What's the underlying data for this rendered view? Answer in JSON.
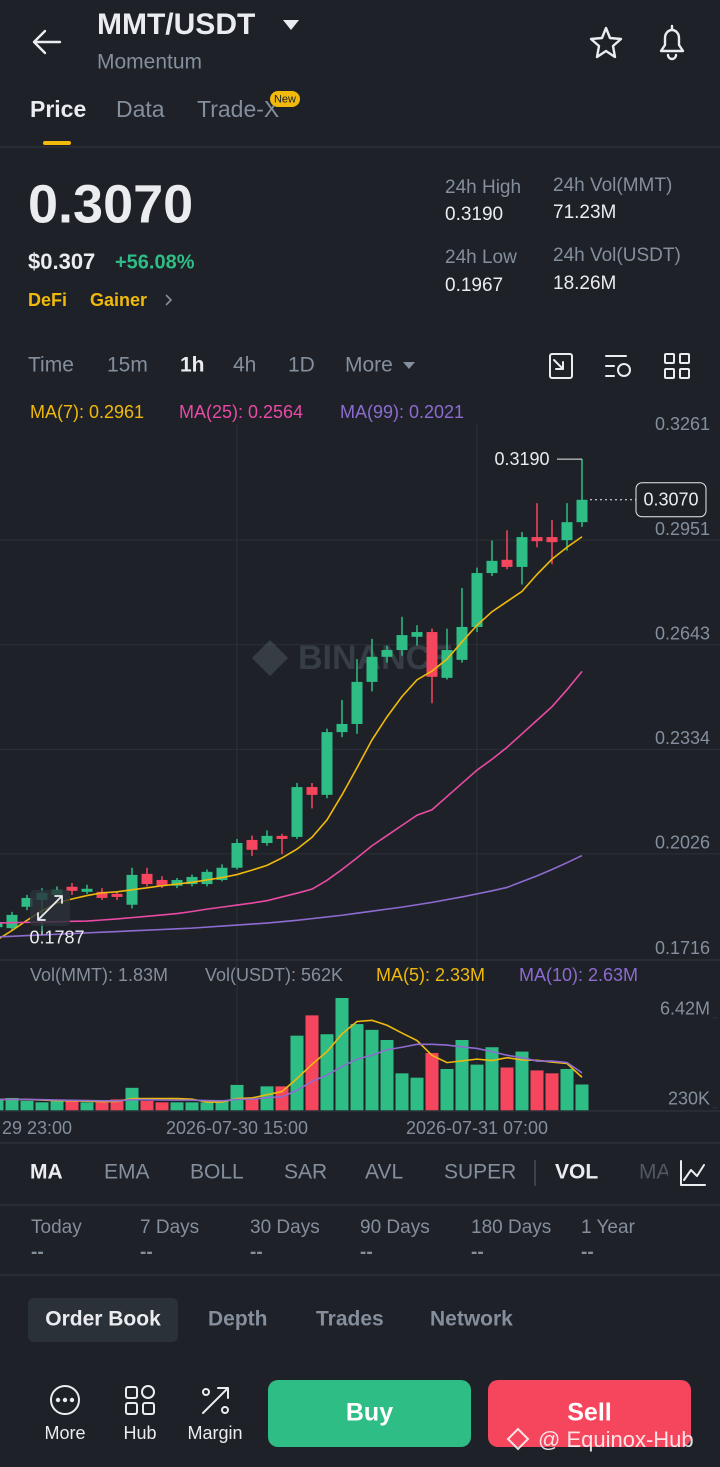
{
  "header": {
    "title": "MMT/USDT",
    "subtitle": "Momentum"
  },
  "tabs": [
    "Price",
    "Data",
    "Trade-X"
  ],
  "new_badge": "New",
  "ticker": {
    "price": "0.3070",
    "usd": "$0.307",
    "change": "+56.08%",
    "tags": [
      "DeFi",
      "Gainer"
    ],
    "stats": [
      {
        "label": "24h High",
        "value": "0.3190"
      },
      {
        "label": "24h Vol(MMT)",
        "value": "71.23M"
      },
      {
        "label": "24h Low",
        "value": "0.1967"
      },
      {
        "label": "24h Vol(USDT)",
        "value": "18.26M"
      }
    ]
  },
  "intervals": [
    "Time",
    "15m",
    "1h",
    "4h",
    "1D",
    "More"
  ],
  "chart_data": [
    {
      "type": "candlestick",
      "categories": [
        "29 23:00",
        null,
        null,
        null,
        null,
        null,
        null,
        null,
        null,
        null,
        null,
        null,
        null,
        null,
        null,
        null,
        "2026-07-30 15:00",
        null,
        null,
        null,
        null,
        null,
        null,
        null,
        null,
        null,
        null,
        null,
        null,
        null,
        null,
        null,
        "2026-07-31 07:00",
        null,
        null,
        null,
        null,
        null,
        null,
        null
      ],
      "open": [
        0.181,
        0.1807,
        0.187,
        0.189,
        0.1905,
        0.1929,
        0.1914,
        0.1914,
        0.1908,
        0.1876,
        0.1967,
        0.1949,
        0.1932,
        0.1937,
        0.1937,
        0.1949,
        0.1985,
        0.2067,
        0.2058,
        0.2079,
        0.2076,
        0.2223,
        0.22,
        0.2385,
        0.2409,
        0.2533,
        0.2607,
        0.2627,
        0.2666,
        0.268,
        0.2545,
        0.2598,
        0.2695,
        0.2854,
        0.2893,
        0.2872,
        0.296,
        0.296,
        0.2951,
        0.3004
      ],
      "high": [
        0.1835,
        0.1855,
        0.1905,
        0.1925,
        0.193,
        0.194,
        0.1935,
        0.1925,
        0.1915,
        0.1985,
        0.1985,
        0.196,
        0.1955,
        0.1965,
        0.198,
        0.1995,
        0.207,
        0.208,
        0.2095,
        0.2085,
        0.2235,
        0.2235,
        0.2395,
        0.248,
        0.26,
        0.266,
        0.264,
        0.2725,
        0.27,
        0.269,
        0.269,
        0.281,
        0.287,
        0.295,
        0.298,
        0.2975,
        0.306,
        0.301,
        0.306,
        0.319
      ],
      "low": [
        0.18,
        0.18,
        0.186,
        0.1787,
        0.1895,
        0.1905,
        0.1908,
        0.189,
        0.189,
        0.1865,
        0.193,
        0.1925,
        0.1925,
        0.193,
        0.193,
        0.1945,
        0.198,
        0.202,
        0.205,
        0.2025,
        0.207,
        0.216,
        0.219,
        0.237,
        0.238,
        0.2505,
        0.259,
        0.261,
        0.264,
        0.247,
        0.254,
        0.259,
        0.268,
        0.2845,
        0.2865,
        0.282,
        0.293,
        0.288,
        0.292,
        0.299
      ],
      "close": [
        0.1825,
        0.1846,
        0.1896,
        0.1911,
        0.192,
        0.1917,
        0.1923,
        0.1896,
        0.1899,
        0.1964,
        0.1937,
        0.1932,
        0.1949,
        0.1958,
        0.1973,
        0.1985,
        0.2058,
        0.2038,
        0.2079,
        0.207,
        0.2223,
        0.22,
        0.2385,
        0.2409,
        0.2533,
        0.2607,
        0.2627,
        0.2671,
        0.268,
        0.2548,
        0.2627,
        0.2695,
        0.2854,
        0.289,
        0.2872,
        0.296,
        0.2948,
        0.2945,
        0.3004,
        0.307
      ],
      "up_color": "#2ebd85",
      "down_color": "#f6465d",
      "ylim": [
        0.1716,
        0.3261
      ],
      "yticks": [
        0.3261,
        0.2951,
        0.2643,
        0.2334,
        0.2026,
        0.1716
      ],
      "grid": true,
      "series": [
        {
          "name": "MA(7): 0.2961",
          "color": "#f0b90b",
          "values": [
            0.1772,
            0.18,
            0.183,
            0.1858,
            0.1881,
            0.1893,
            0.1903,
            0.1911,
            0.1914,
            0.192,
            0.1926,
            0.1932,
            0.1937,
            0.1942,
            0.1949,
            0.1956,
            0.1965,
            0.1978,
            0.1992,
            0.2014,
            0.204,
            0.2075,
            0.2126,
            0.22,
            0.228,
            0.2362,
            0.243,
            0.249,
            0.2539,
            0.2565,
            0.26,
            0.2651,
            0.27,
            0.274,
            0.277,
            0.28,
            0.285,
            0.2895,
            0.293,
            0.2961
          ]
        },
        {
          "name": "MA(25): 0.2564",
          "color": "#e94aa5",
          "values": [
            0.1822,
            0.1823,
            0.1824,
            0.1825,
            0.1826,
            0.1827,
            0.1828,
            0.1831,
            0.1834,
            0.1838,
            0.1842,
            0.1846,
            0.185,
            0.1856,
            0.1863,
            0.1869,
            0.1875,
            0.1881,
            0.1888,
            0.1899,
            0.191,
            0.1922,
            0.1948,
            0.198,
            0.2014,
            0.205,
            0.208,
            0.211,
            0.214,
            0.2156,
            0.2195,
            0.2234,
            0.2273,
            0.2305,
            0.234,
            0.238,
            0.242,
            0.246,
            0.251,
            0.2564
          ]
        },
        {
          "name": "MA(99): 0.2021",
          "color": "#8e6bd1",
          "values": [
            0.1781,
            0.1783,
            0.1785,
            0.1787,
            0.1789,
            0.1791,
            0.1793,
            0.1795,
            0.1797,
            0.1799,
            0.1801,
            0.1803,
            0.1805,
            0.1807,
            0.181,
            0.1813,
            0.1816,
            0.1819,
            0.1822,
            0.1826,
            0.183,
            0.1835,
            0.184,
            0.1845,
            0.1851,
            0.1857,
            0.1863,
            0.1869,
            0.1876,
            0.1883,
            0.1891,
            0.1899,
            0.1908,
            0.1917,
            0.1927,
            0.1944,
            0.1961,
            0.198,
            0.2,
            0.2021
          ]
        }
      ],
      "annotations": {
        "last": {
          "value": 0.307,
          "label": "0.3070"
        },
        "high": {
          "value": 0.319,
          "label": "0.3190"
        },
        "low": {
          "value": 0.1787,
          "label": "0.1787"
        }
      }
    },
    {
      "type": "bar",
      "info": "Vol(USDT): 562K",
      "ylim": [
        0,
        7800000
      ],
      "yticks": [
        {
          "value": 6420000,
          "label": "6.42M"
        },
        {
          "value": 230000,
          "label": "230K"
        }
      ],
      "series": [
        {
          "name": "Vol(MMT): 1.83M",
          "values": [
            800000,
            900000,
            700000,
            600000,
            700000,
            700000,
            600000,
            600000,
            800000,
            1600000,
            700000,
            600000,
            600000,
            600000,
            600000,
            700000,
            1800000,
            800000,
            1700000,
            1700000,
            5200000,
            6600000,
            5300000,
            7800000,
            6000000,
            5600000,
            4900000,
            2600000,
            2300000,
            4000000,
            2900000,
            4900000,
            3200000,
            4400000,
            3000000,
            4100000,
            2800000,
            2600000,
            2900000,
            1830000
          ]
        },
        {
          "name": "MA(5): 2.33M",
          "color": "#f0b90b",
          "values": [
            800000,
            800000,
            800000,
            750000,
            720000,
            700000,
            680000,
            640000,
            660000,
            860000,
            860000,
            860000,
            860000,
            820000,
            620000,
            620000,
            860000,
            900000,
            1120000,
            1340000,
            2240000,
            3220000,
            4100000,
            5320000,
            6180000,
            6260000,
            5920000,
            5380000,
            4860000,
            3840000,
            3340000,
            3460000,
            3580000,
            3480000,
            3680000,
            3520000,
            3500000,
            3380000,
            3280000,
            2330000
          ]
        },
        {
          "name": "MA(10): 2.63M",
          "color": "#8e6bd1",
          "values": [
            800000,
            800000,
            800000,
            780000,
            760000,
            740000,
            720000,
            700000,
            700000,
            780000,
            780000,
            760000,
            750000,
            750000,
            720000,
            700000,
            800000,
            820000,
            920000,
            980000,
            1430000,
            2040000,
            2480000,
            3070000,
            3580000,
            3850000,
            4230000,
            4400000,
            4600000,
            4600000,
            4550000,
            4420000,
            4320000,
            4100000,
            3850000,
            3680000,
            3450000,
            3450000,
            3350000,
            2630000
          ]
        }
      ]
    }
  ],
  "indicators": [
    "MA",
    "EMA",
    "BOLL",
    "SAR",
    "AVL",
    "SUPER",
    "VOL",
    "MA"
  ],
  "performance": [
    {
      "label": "Today",
      "value": "--"
    },
    {
      "label": "7 Days",
      "value": "--"
    },
    {
      "label": "30 Days",
      "value": "--"
    },
    {
      "label": "90 Days",
      "value": "--"
    },
    {
      "label": "180 Days",
      "value": "--"
    },
    {
      "label": "1 Year",
      "value": "--"
    }
  ],
  "book_tabs": [
    "Order Book",
    "Depth",
    "Trades",
    "Network"
  ],
  "nav": [
    "More",
    "Hub",
    "Margin"
  ],
  "actions": [
    "Buy",
    "Sell"
  ],
  "watermarks": [
    "BINANCE",
    "@ Equinox-Hub"
  ]
}
